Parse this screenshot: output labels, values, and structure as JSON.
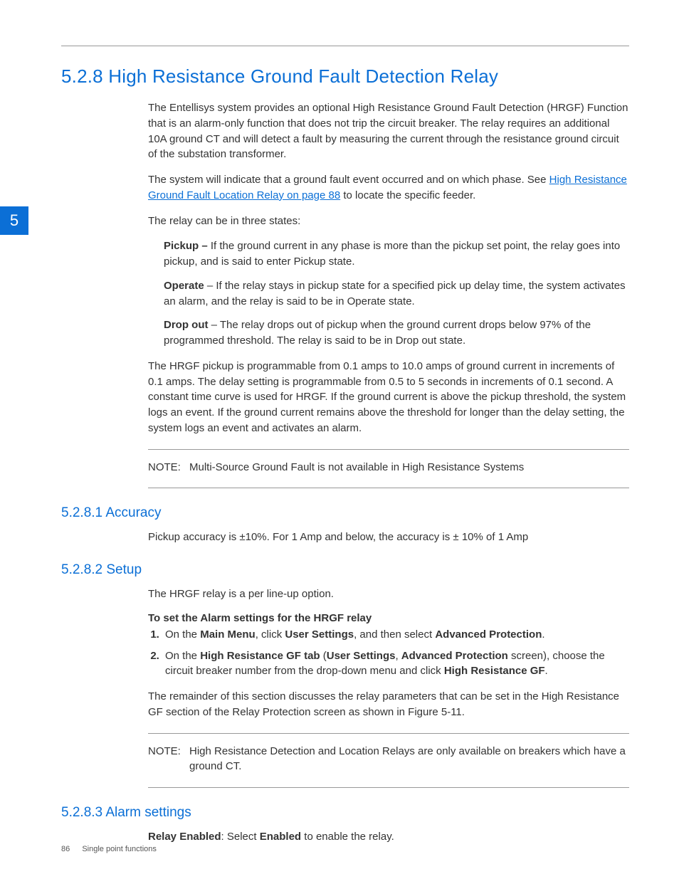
{
  "chapter_tab": "5",
  "heading": "5.2.8 High Resistance Ground Fault Detection Relay",
  "intro_p1": "The Entellisys system provides an optional High Resistance Ground Fault Detection (HRGF) Function that is an alarm-only function that does not trip the circuit breaker. The relay requires an additional 10A ground CT and will detect a fault by measuring the current through the resistance ground circuit of the substation transformer.",
  "intro_p2_pre": "The system will indicate that a ground fault event occurred and on which phase. See ",
  "intro_p2_link": "High Resistance Ground Fault Location Relay on page 88",
  "intro_p2_post": " to locate the specific feeder.",
  "states_intro": "The relay can be in three states:",
  "state_pickup_label": "Pickup –",
  "state_pickup_text": " If the ground current in any phase is more than the pickup set point, the relay goes into pickup, and is said to enter Pickup state.",
  "state_operate_label": "Operate",
  "state_operate_text": " – If the relay stays in pickup state for a specified pick up delay time, the system activates an alarm, and the relay is said to be in Operate state.",
  "state_dropout_label": "Drop out",
  "state_dropout_text": " – The relay drops out of pickup when the ground current drops below 97% of the programmed threshold. The relay is said to be in Drop out state.",
  "hrgf_detail": "The HRGF pickup is programmable from 0.1 amps to 10.0 amps of ground current in increments of 0.1 amps. The delay setting is programmable from 0.5 to 5 seconds in increments of 0.1 second. A constant time curve is used for HRGF. If the ground current is above the pickup threshold, the system logs an event. If the ground current remains above the threshold for longer than the delay setting, the system logs an event and activates an alarm.",
  "note1_label": "NOTE:",
  "note1_text": "Multi-Source Ground Fault is not available in High Resistance Systems",
  "accuracy_heading": "5.2.8.1 Accuracy",
  "accuracy_text": "Pickup accuracy is ±10%. For 1 Amp and below, the accuracy is ± 10% of 1 Amp",
  "setup_heading": "5.2.8.2 Setup",
  "setup_intro": "The HRGF relay is a per line-up option.",
  "setup_bold": "To set the Alarm settings for the HRGF relay",
  "step1_a": "On the ",
  "step1_b": "Main Menu",
  "step1_c": ", click ",
  "step1_d": "User Settings",
  "step1_e": ", and then select ",
  "step1_f": "Advanced Protection",
  "step1_g": ".",
  "step2_a": "On the ",
  "step2_b": "High Resistance GF tab",
  "step2_c": " (",
  "step2_d": "User Settings",
  "step2_e": ", ",
  "step2_f": "Advanced Protection",
  "step2_g": " screen), choose the circuit breaker number from the drop-down menu and click ",
  "step2_h": "High Resistance GF",
  "step2_i": ".",
  "setup_remainder": "The remainder of this section discusses the relay parameters that can be set in the High Resistance GF section of the Relay Protection screen as shown in Figure 5-11.",
  "note2_label": "NOTE:",
  "note2_text": "High Resistance Detection and Location Relays are only available on breakers which have a ground CT.",
  "alarm_heading": "5.2.8.3 Alarm settings",
  "alarm_a": "Relay Enabled",
  "alarm_b": ": Select ",
  "alarm_c": "Enabled",
  "alarm_d": " to enable the relay.",
  "footer_page": "86",
  "footer_title": "Single point functions"
}
